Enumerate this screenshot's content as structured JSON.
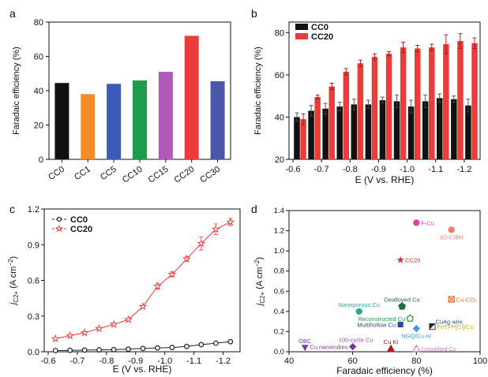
{
  "chart_data": [
    {
      "panel": "a",
      "type": "bar",
      "ylabel": "Faradaic efficiency (%)",
      "ylim": [
        0,
        80
      ],
      "yticks": [
        0,
        20,
        40,
        60,
        80
      ],
      "categories": [
        "CC0",
        "CC1",
        "CC5",
        "CC10",
        "CC15",
        "CC20",
        "CC30"
      ],
      "values": [
        44.5,
        38,
        44,
        46,
        51,
        72,
        45.5
      ],
      "colors": [
        "#111111",
        "#f28c28",
        "#3a5bb8",
        "#1e9e4c",
        "#b05ab9",
        "#ec3b3b",
        "#4a57a8"
      ]
    },
    {
      "panel": "b",
      "type": "bar",
      "ylabel": "Faradaic efficiency (%)",
      "xlabel": "E (V vs. RHE)",
      "ylim": [
        20,
        85
      ],
      "yticks": [
        20,
        40,
        60,
        80
      ],
      "xticks": [
        "-0.6",
        "-0.7",
        "-0.8",
        "-0.9",
        "-1.0",
        "-1.1",
        "-1.2"
      ],
      "legend_position": "top-left",
      "x": [
        -0.625,
        -0.675,
        -0.725,
        -0.775,
        -0.825,
        -0.875,
        -0.925,
        -0.975,
        -1.025,
        -1.075,
        -1.125,
        -1.175,
        -1.225
      ],
      "series": [
        {
          "name": "CC0",
          "color": "#111111",
          "values": [
            40,
            43,
            44,
            45,
            46,
            46,
            48,
            47.5,
            45,
            47.5,
            49,
            48.5,
            45.5
          ],
          "errors": [
            2,
            2.5,
            2.5,
            2,
            2.5,
            2,
            1.5,
            3,
            3,
            3,
            2,
            1.5,
            3
          ]
        },
        {
          "name": "CC20",
          "color": "#ec3b3b",
          "values": [
            39,
            49.5,
            54.5,
            61.5,
            65.5,
            68.5,
            70,
            73,
            72.5,
            73,
            74.5,
            76,
            75
          ],
          "errors": [
            2.5,
            1,
            1.5,
            1.5,
            1.5,
            1.5,
            1,
            2.5,
            1.5,
            1.5,
            4.5,
            3.5,
            2.5
          ]
        }
      ]
    },
    {
      "panel": "c",
      "type": "line",
      "ylabel": "j_C2+ (A cm^-2)",
      "xlabel": "E (V vs. RHE)",
      "ylim": [
        0,
        1.2
      ],
      "yticks": [
        "0.0",
        "0.3",
        "0.6",
        "0.9",
        "1.2"
      ],
      "xticks": [
        "-0.6",
        "-0.7",
        "-0.8",
        "-0.9",
        "-1.0",
        "-1.1",
        "-1.2"
      ],
      "legend_position": "top-left",
      "x": [
        -0.625,
        -0.675,
        -0.725,
        -0.775,
        -0.825,
        -0.875,
        -0.925,
        -0.975,
        -1.025,
        -1.075,
        -1.125,
        -1.175,
        -1.225
      ],
      "series": [
        {
          "name": "CC0",
          "color": "#222222",
          "marker": "circle",
          "values": [
            0.01,
            0.012,
            0.014,
            0.016,
            0.018,
            0.022,
            0.028,
            0.032,
            0.036,
            0.045,
            0.06,
            0.072,
            0.085
          ],
          "errors": [
            0.003,
            0.003,
            0.003,
            0.003,
            0.004,
            0.004,
            0.004,
            0.004,
            0.005,
            0.006,
            0.006,
            0.007,
            0.008
          ]
        },
        {
          "name": "CC20",
          "color": "#ec3b3b",
          "marker": "star",
          "values": [
            0.11,
            0.135,
            0.16,
            0.195,
            0.23,
            0.27,
            0.38,
            0.55,
            0.65,
            0.78,
            0.91,
            1.03,
            1.09
          ],
          "errors": [
            0.005,
            0.005,
            0.006,
            0.008,
            0.008,
            0.01,
            0.012,
            0.025,
            0.02,
            0.02,
            0.055,
            0.045,
            0.03
          ]
        }
      ]
    },
    {
      "panel": "d",
      "type": "scatter",
      "ylabel": "j_C2+ (A cm^-2)",
      "xlabel": "Faradaic efficiency (%)",
      "xlim": [
        40,
        100
      ],
      "ylim": [
        0,
        1.4
      ],
      "xticks": [
        40,
        60,
        80,
        100
      ],
      "yticks": [
        "0.0",
        "0.2",
        "0.4",
        "0.6",
        "0.8",
        "1.0",
        "1.2",
        "1.4"
      ],
      "points": [
        {
          "label": "F-Cu",
          "x": 80,
          "y": 1.28,
          "color": "#e0409a",
          "marker": "circle",
          "label_pos": "right"
        },
        {
          "label": "3D-CIBH",
          "x": 91,
          "y": 1.21,
          "color": "#ef7a6d",
          "marker": "circle",
          "label_pos": "below"
        },
        {
          "label": "CC20",
          "x": 75,
          "y": 0.91,
          "color": "#e0282a",
          "marker": "star",
          "label_pos": "right"
        },
        {
          "label": "Dealloyed Cu",
          "x": 75.5,
          "y": 0.45,
          "color": "#1e6e40",
          "marker": "pentagon",
          "label_pos": "above"
        },
        {
          "label": "Cu-CO₂",
          "x": 91,
          "y": 0.52,
          "color": "#e6782a",
          "marker": "boxx",
          "label_pos": "right"
        },
        {
          "label": "Nanoporous Cu",
          "x": 62,
          "y": 0.4,
          "color": "#2aa88a",
          "marker": "circle",
          "label_pos": "above"
        },
        {
          "label": "Reconstructed Cu",
          "x": 78,
          "y": 0.33,
          "color": "#2e9e4a",
          "marker": "pentagon-open",
          "label_pos": "left"
        },
        {
          "label": "CuAg wire",
          "x": 84.5,
          "y": 0.3,
          "color": "#2b4a9a",
          "marker": "none",
          "label_pos": "right"
        },
        {
          "label": "Multihollow Cu",
          "x": 75,
          "y": 0.27,
          "color": "#2b4a9a",
          "marker": "square",
          "label_pos": "left"
        },
        {
          "label": "FeTPP[Cl]/Cu",
          "x": 85,
          "y": 0.25,
          "color": "#c8b000",
          "marker": "square-half",
          "label_pos": "right"
        },
        {
          "label": "NGQ/Cu-nr",
          "x": 80,
          "y": 0.23,
          "color": "#3a9adf",
          "marker": "diamond",
          "label_pos": "below"
        },
        {
          "label": "OBC",
          "x": 45,
          "y": 0.04,
          "color": "#7a3a9a",
          "marker": "triangle-down",
          "label_pos": "above"
        },
        {
          "label": "Cu nanocubes",
          "x": 60,
          "y": 0.05,
          "color": "#7a3a9a",
          "marker": "diamond",
          "label_pos": "left"
        },
        {
          "label": "100-cycle Cu",
          "x": 61,
          "y": 0.05,
          "color": "#9a4ac8",
          "marker": "none",
          "label_pos": "above"
        },
        {
          "label": "Cu KI",
          "x": 72,
          "y": 0.03,
          "color": "#b01a1a",
          "marker": "triangle-up",
          "label_pos": "above"
        },
        {
          "label": "I-modified Cu",
          "x": 80,
          "y": 0.03,
          "color": "#d07ac8",
          "marker": "triangle-up-open",
          "label_pos": "right"
        }
      ]
    }
  ],
  "panel_letters": [
    "a",
    "b",
    "c",
    "d"
  ]
}
